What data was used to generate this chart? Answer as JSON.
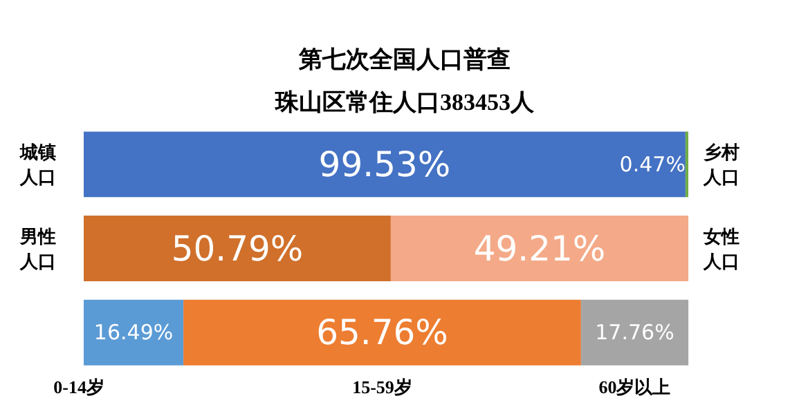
{
  "chart_data": {
    "type": "bar",
    "orientation": "horizontal",
    "stacked": true,
    "xlim": [
      0,
      100
    ],
    "tick_labels": false,
    "grid": false,
    "title": "第七次全国人口普查",
    "subtitle": "珠山区常住人口383453人",
    "categories": [
      null,
      null,
      null
    ],
    "series": [
      {
        "colors": [
          "#4472c4",
          "#d0702b",
          "#5b9bd5"
        ],
        "values": [
          99.53,
          50.79,
          16.49
        ],
        "value_labels": [
          "99.53%",
          "50.79%",
          "16.49%"
        ]
      },
      {
        "colors": [
          "#70ad47",
          "#f4aa88",
          "#ed7d31"
        ],
        "values": [
          0.47,
          49.21,
          65.76
        ],
        "value_labels": [
          "0.47%",
          "49.21%",
          "65.76%"
        ]
      },
      {
        "colors": [
          "#a5a5a5",
          "#a5a5a5",
          "#a5a5a5"
        ],
        "values": [
          null,
          null,
          17.76
        ],
        "value_labels": [
          null,
          null,
          "17.76%"
        ]
      }
    ],
    "annotations": [
      "城镇人口",
      "乡村人口",
      "男性人口",
      "女性人口",
      "0-14岁",
      "15-59岁",
      "60岁以上"
    ]
  }
}
